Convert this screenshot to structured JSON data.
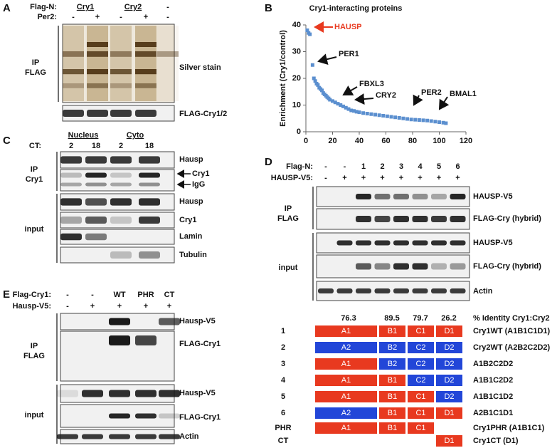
{
  "panel_a": {
    "letter": "A",
    "flag_n_label": "Flag-N:",
    "flag_n": [
      "Cry1",
      "Cry2",
      "-"
    ],
    "per2_label": "Per2:",
    "per2": [
      "-",
      "+",
      "-",
      "+",
      "-"
    ],
    "ip_label": "IP",
    "ip_target": "FLAG",
    "blots": [
      "Silver stain",
      "FLAG-Cry1/2"
    ]
  },
  "panel_b": {
    "letter": "B"
  },
  "chart_data": {
    "type": "scatter",
    "title": "Cry1-interacting proteins",
    "ylabel": "Enrichment (Cry1/control)",
    "x": [
      1,
      2,
      3,
      5,
      6,
      7,
      8,
      9,
      10,
      11,
      12,
      13,
      14,
      15,
      16,
      17,
      18,
      20,
      22,
      24,
      26,
      28,
      30,
      32,
      34,
      36,
      38,
      40,
      43,
      46,
      49,
      52,
      55,
      58,
      61,
      64,
      67,
      70,
      73,
      76,
      79,
      82,
      85,
      88,
      91,
      94,
      97,
      100,
      103,
      105
    ],
    "values": [
      38,
      37,
      36.5,
      25,
      20,
      19,
      18,
      17.5,
      16.5,
      16,
      15.5,
      14.5,
      14,
      13.5,
      13,
      12.5,
      12,
      11.5,
      11,
      10.5,
      10,
      9.5,
      9,
      8.5,
      8,
      7.8,
      7.5,
      7.3,
      7,
      6.8,
      6.6,
      6.4,
      6.2,
      6,
      5.8,
      5.6,
      5.4,
      5.2,
      5,
      4.8,
      4.6,
      4.5,
      4.4,
      4.3,
      4.2,
      4,
      3.8,
      3.6,
      3.4,
      3.2
    ],
    "color": "#5b8fcf",
    "xlim": [
      0,
      120
    ],
    "ylim": [
      0,
      40
    ],
    "xticks": [
      0,
      20,
      40,
      60,
      80,
      100,
      120
    ],
    "yticks": [
      0,
      10,
      20,
      30,
      40
    ],
    "annotations": [
      {
        "text": "HAUSP",
        "color": "#e8391f"
      },
      {
        "text": "PER1",
        "color": "#111111"
      },
      {
        "text": "FBXL3",
        "color": "#111111"
      },
      {
        "text": "CRY2",
        "color": "#111111"
      },
      {
        "text": "PER2",
        "color": "#111111"
      },
      {
        "text": "BMAL1",
        "color": "#111111"
      }
    ]
  },
  "panel_c": {
    "letter": "C",
    "groups": [
      "Nucleus",
      "Cyto"
    ],
    "ct_label": "CT:",
    "ct": [
      "2",
      "18",
      "2",
      "18"
    ],
    "ip_label": "IP",
    "ip_target": "Cry1",
    "input_label": "input",
    "blots": [
      "Hausp",
      "Cry1",
      "IgG",
      "Hausp",
      "Cry1",
      "Lamin",
      "Tubulin"
    ]
  },
  "panel_d": {
    "letter": "D",
    "flag_n_label": "Flag-N:",
    "flag_n": [
      "-",
      "-",
      "1",
      "2",
      "3",
      "4",
      "5",
      "6"
    ],
    "hausp_label": "HAUSP-V5:",
    "hausp": [
      "-",
      "+",
      "+",
      "+",
      "+",
      "+",
      "+",
      "+"
    ],
    "ip_label": "IP",
    "ip_target": "FLAG",
    "input_label": "input",
    "blots": [
      "HAUSP-V5",
      "FLAG-Cry (hybrid)",
      "HAUSP-V5",
      "FLAG-Cry (hybrid)",
      "Actin"
    ],
    "identity": {
      "values": [
        "76.3",
        "89.5",
        "79.7",
        "26.2"
      ],
      "label": "% Identity Cry1:Cry2"
    },
    "constructs": [
      {
        "id": "1",
        "blocks": [
          "A1",
          "B1",
          "C1",
          "D1"
        ],
        "name": "Cry1WT (A1B1C1D1)"
      },
      {
        "id": "2",
        "blocks": [
          "A2",
          "B2",
          "C2",
          "D2"
        ],
        "name": "Cry2WT (A2B2C2D2)"
      },
      {
        "id": "3",
        "blocks": [
          "A1",
          "B2",
          "C2",
          "D2"
        ],
        "name": "A1B2C2D2"
      },
      {
        "id": "4",
        "blocks": [
          "A1",
          "B1",
          "C2",
          "D2"
        ],
        "name": "A1B1C2D2"
      },
      {
        "id": "5",
        "blocks": [
          "A1",
          "B1",
          "C1",
          "D2"
        ],
        "name": "A1B1C1D2"
      },
      {
        "id": "6",
        "blocks": [
          "A2",
          "B1",
          "C1",
          "D1"
        ],
        "name": "A2B1C1D1"
      },
      {
        "id": "PHR",
        "blocks": [
          "A1",
          "B1",
          "C1",
          null
        ],
        "name": "Cry1PHR (A1B1C1)"
      },
      {
        "id": "CT",
        "blocks": [
          null,
          null,
          null,
          "D1"
        ],
        "name": "Cry1CT (D1)"
      }
    ]
  },
  "panel_e": {
    "letter": "E",
    "flag_label": "Flag-Cry1:",
    "flag": [
      "-",
      "-",
      "WT",
      "PHR",
      "CT"
    ],
    "hausp_label": "Hausp-V5:",
    "hausp": [
      "-",
      "+",
      "+",
      "+",
      "+"
    ],
    "ip_label": "IP",
    "ip_target": "FLAG",
    "input_label": "input",
    "blots": [
      "Hausp-V5",
      "FLAG-Cry1",
      "Hausp-V5",
      "FLAG-Cry1",
      "Actin"
    ]
  }
}
